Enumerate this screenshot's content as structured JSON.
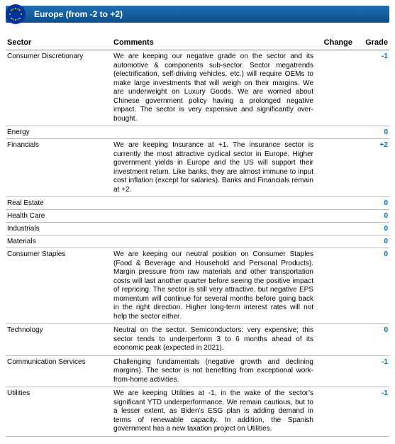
{
  "header": {
    "title": "Europe (from -2 to +2)",
    "bar_color": "#1f6fb2",
    "bar_gradient_end": "#0d4f8b",
    "text_color": "#ffffff",
    "flag_bg": "#003399",
    "flag_star": "#ffcc00"
  },
  "columns": {
    "sector": "Sector",
    "comments": "Comments",
    "change": "Change",
    "grade": "Grade"
  },
  "grade_colors": {
    "positive": "#0070c0",
    "zero": "#0070c0",
    "negative": "#0070c0"
  },
  "rows": [
    {
      "sector": "Consumer Discretionary",
      "comments": "We are keeping our negative grade on the sector and its automotive & components sub-sector. Sector megatrends (electrification, self-driving vehicles, etc.) will require OEMs to make large investments that will weigh on their margins. We are underweight on Luxury Goods. We are worried about Chinese government policy having a prolonged negative impact. The sector is very expensive and significantly over-bought.",
      "change": "",
      "grade": "-1"
    },
    {
      "sector": "Energy",
      "comments": "",
      "change": "",
      "grade": "0"
    },
    {
      "sector": "Financials",
      "comments": "We are keeping Insurance at +1. The insurance sector is currently the most attractive cyclical sector in Europe. Higher government yields in Europe and the US will support their investment return. Like banks, they are almost immune to input cost inflation (except for salaries). Banks and Financials remain at +2.",
      "change": "",
      "grade": "+2"
    },
    {
      "sector": "Real Estate",
      "comments": "",
      "change": "",
      "grade": "0"
    },
    {
      "sector": "Health Care",
      "comments": "",
      "change": "",
      "grade": "0"
    },
    {
      "sector": "Industrials",
      "comments": "",
      "change": "",
      "grade": "0"
    },
    {
      "sector": "Materials",
      "comments": "",
      "change": "",
      "grade": "0"
    },
    {
      "sector": "Consumer Staples",
      "comments": "We are keeping our neutral position on Consumer Staples (Food & Beverage and Household and Personal Products). Margin pressure from raw materials and other transportation costs will last another quarter before seeing the positive impact of repricing. The sector is still very attractive, but negative EPS momentum will continue for several months before going back in the right direction. Higher long-term interest rates will not help the sector either.",
      "change": "",
      "grade": "0"
    },
    {
      "sector": "Technology",
      "comments": "Neutral on the sector. Semiconductors: very expensive; this sector tends to underperform 3 to 6 months ahead of its economic peak (expected in 2021).",
      "change": "",
      "grade": "0"
    },
    {
      "sector": "Communication Services",
      "comments": "Challenging fundamentals (negative growth and declining margins). The sector is not benefiting from exceptional work-from-home activities.",
      "change": "",
      "grade": "-1"
    },
    {
      "sector": "Utilities",
      "comments": "We are keeping Utilities at -1, in the wake of the sector’s significant YTD underperformance. We remain cautious, but to a lesser extent, as Biden’s ESG plan is adding demand in terms of renewable capacity. In addition, the Spanish government has a new taxation project on Utilities.",
      "change": "",
      "grade": "-1"
    }
  ]
}
